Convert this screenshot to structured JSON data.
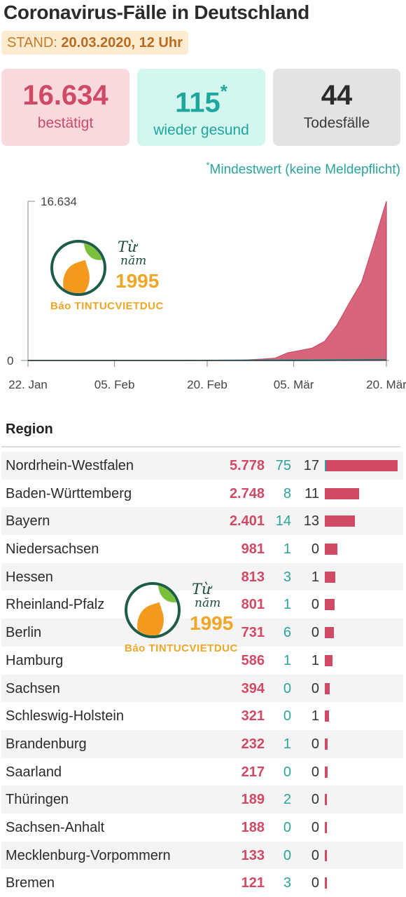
{
  "header": {
    "title": "Coronavirus-Fälle in Deutschland",
    "stand_label": "STAND:",
    "stand_value": "20.03.2020, 12 Uhr"
  },
  "cards": {
    "confirmed_value": "16.634",
    "confirmed_label": "bestätigt",
    "recovered_value": "115",
    "recovered_mark": "*",
    "recovered_label": "wieder gesund",
    "deaths_value": "44",
    "deaths_label": "Todesfälle"
  },
  "footnote": {
    "mark": "*",
    "text": "Mindestwert (keine Meldepflicht)"
  },
  "watermark": {
    "line1": "Từ",
    "line2": "năm",
    "year": "1995",
    "brand": "Báo TINTUCVIETDUC"
  },
  "chart_data": {
    "type": "area",
    "x_tick_labels": [
      "22. Jan",
      "05. Feb",
      "20. Feb",
      "05. Mär",
      "20. Mär"
    ],
    "y_tick_labels": [
      "0",
      "16.634"
    ],
    "ylim": [
      0,
      16634
    ],
    "x_day_range": [
      0,
      58
    ],
    "x_tick_days": [
      0,
      14,
      29,
      43,
      58
    ],
    "series": [
      {
        "color": "#d04a65",
        "points": [
          [
            0,
            4
          ],
          [
            7,
            12
          ],
          [
            14,
            12
          ],
          [
            21,
            16
          ],
          [
            28,
            16
          ],
          [
            32,
            18
          ],
          [
            35,
            50
          ],
          [
            38,
            150
          ],
          [
            40,
            240
          ],
          [
            42,
            800
          ],
          [
            44,
            1040
          ],
          [
            46,
            1300
          ],
          [
            48,
            2000
          ],
          [
            50,
            3700
          ],
          [
            52,
            6000
          ],
          [
            54,
            8200
          ],
          [
            56,
            12300
          ],
          [
            57,
            14500
          ],
          [
            58,
            16634
          ]
        ]
      },
      {
        "color": "#2aa39c",
        "points": [
          [
            0,
            0
          ],
          [
            28,
            16
          ],
          [
            58,
            115
          ]
        ]
      },
      {
        "color": "#333333",
        "points": [
          [
            0,
            0
          ],
          [
            44,
            2
          ],
          [
            58,
            44
          ]
        ]
      }
    ]
  },
  "region": {
    "title": "Region",
    "max_confirmed": 5778,
    "rows": [
      {
        "name": "Nordrhein-Westfalen",
        "confirmed": "5.778",
        "confirmed_num": 5778,
        "recovered": "75",
        "deaths": "17"
      },
      {
        "name": "Baden-Württemberg",
        "confirmed": "2.748",
        "confirmed_num": 2748,
        "recovered": "8",
        "deaths": "11"
      },
      {
        "name": "Bayern",
        "confirmed": "2.401",
        "confirmed_num": 2401,
        "recovered": "14",
        "deaths": "13"
      },
      {
        "name": "Niedersachsen",
        "confirmed": "981",
        "confirmed_num": 981,
        "recovered": "1",
        "deaths": "0"
      },
      {
        "name": "Hessen",
        "confirmed": "813",
        "confirmed_num": 813,
        "recovered": "3",
        "deaths": "1"
      },
      {
        "name": "Rheinland-Pfalz",
        "confirmed": "801",
        "confirmed_num": 801,
        "recovered": "1",
        "deaths": "0"
      },
      {
        "name": "Berlin",
        "confirmed": "731",
        "confirmed_num": 731,
        "recovered": "6",
        "deaths": "0"
      },
      {
        "name": "Hamburg",
        "confirmed": "586",
        "confirmed_num": 586,
        "recovered": "1",
        "deaths": "1"
      },
      {
        "name": "Sachsen",
        "confirmed": "394",
        "confirmed_num": 394,
        "recovered": "0",
        "deaths": "0"
      },
      {
        "name": "Schleswig-Holstein",
        "confirmed": "321",
        "confirmed_num": 321,
        "recovered": "0",
        "deaths": "1"
      },
      {
        "name": "Brandenburg",
        "confirmed": "232",
        "confirmed_num": 232,
        "recovered": "1",
        "deaths": "0"
      },
      {
        "name": "Saarland",
        "confirmed": "217",
        "confirmed_num": 217,
        "recovered": "0",
        "deaths": "0"
      },
      {
        "name": "Thüringen",
        "confirmed": "189",
        "confirmed_num": 189,
        "recovered": "2",
        "deaths": "0"
      },
      {
        "name": "Sachsen-Anhalt",
        "confirmed": "188",
        "confirmed_num": 188,
        "recovered": "0",
        "deaths": "0"
      },
      {
        "name": "Mecklenburg-Vorpommern",
        "confirmed": "133",
        "confirmed_num": 133,
        "recovered": "0",
        "deaths": "0"
      },
      {
        "name": "Bremen",
        "confirmed": "121",
        "confirmed_num": 121,
        "recovered": "3",
        "deaths": "0"
      }
    ]
  }
}
